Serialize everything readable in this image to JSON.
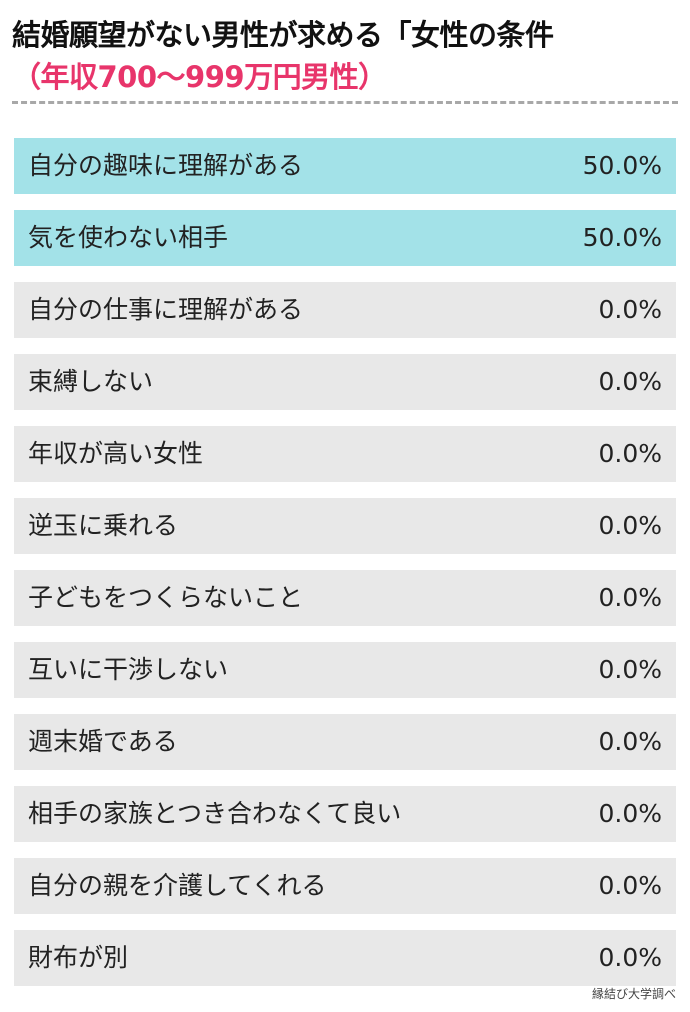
{
  "chart_data": {
    "type": "bar",
    "title": "結婚願望がない男性が求める「女性の条件",
    "subtitle": "（年収700〜999万円男性）",
    "categories": [
      "自分の趣味に理解がある",
      "気を使わない相手",
      "自分の仕事に理解がある",
      "束縛しない",
      "年収が高い女性",
      "逆玉に乗れる",
      "子どもをつくらないこと",
      "互いに干渉しない",
      "週末婚である",
      "相手の家族とつき合わなくて良い",
      "自分の親を介護してくれる",
      "財布が別"
    ],
    "values": [
      50.0,
      50.0,
      0.0,
      0.0,
      0.0,
      0.0,
      0.0,
      0.0,
      0.0,
      0.0,
      0.0,
      0.0
    ],
    "value_labels": [
      "50.0%",
      "50.0%",
      "0.0%",
      "0.0%",
      "0.0%",
      "0.0%",
      "0.0%",
      "0.0%",
      "0.0%",
      "0.0%",
      "0.0%",
      "0.0%"
    ],
    "unit": "%",
    "source": "縁結び大学調べ"
  },
  "colors": {
    "highlight_row": "#a3e2e8",
    "default_row": "#e8e8e8",
    "subtitle": "#e8356b",
    "divider": "#a8a8a8"
  }
}
